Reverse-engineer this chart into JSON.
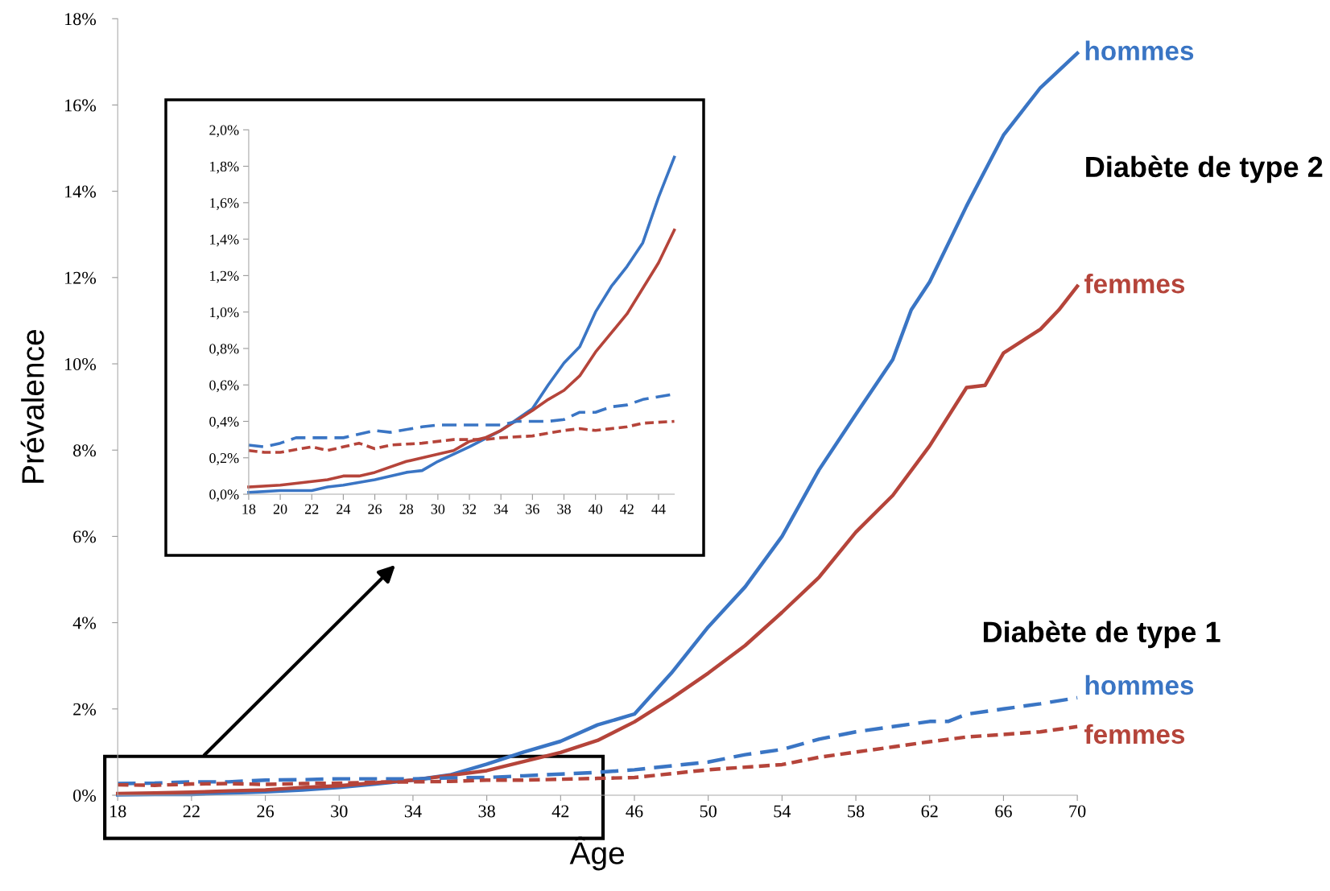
{
  "chart_data": [
    {
      "type": "line",
      "xlabel": "Âge",
      "ylabel": "Prévalence",
      "xlim": [
        18,
        70
      ],
      "ylim": [
        0,
        18
      ],
      "xticks": [
        18,
        22,
        26,
        30,
        34,
        38,
        42,
        46,
        50,
        54,
        58,
        62,
        66,
        70
      ],
      "yticks": [
        {
          "value": 0,
          "label": "0%"
        },
        {
          "value": 2,
          "label": "2%"
        },
        {
          "value": 4,
          "label": "4%"
        },
        {
          "value": 6,
          "label": "6%"
        },
        {
          "value": 8,
          "label": "8%"
        },
        {
          "value": 10,
          "label": "10%"
        },
        {
          "value": 12,
          "label": "12%"
        },
        {
          "value": 14,
          "label": "14%"
        },
        {
          "value": 16,
          "label": "16%"
        },
        {
          "value": 18,
          "label": "18%"
        }
      ],
      "annotations": [
        "Diabète de type 2",
        "Diabète de type 1"
      ],
      "grid": false,
      "legend": false,
      "marker": "none",
      "series": [
        {
          "name": "hommes",
          "color": "#3a75c4",
          "line_style": "solid",
          "x": [
            18,
            20,
            22,
            24,
            26,
            28,
            30,
            32,
            34,
            36,
            38,
            40,
            42,
            44,
            46,
            48,
            50,
            52,
            54,
            56,
            58,
            60,
            61,
            62,
            64,
            66,
            68,
            70
          ],
          "values": [
            0.01,
            0.02,
            0.02,
            0.05,
            0.08,
            0.12,
            0.18,
            0.26,
            0.35,
            0.47,
            0.72,
            1.0,
            1.25,
            1.63,
            1.88,
            2.83,
            3.9,
            4.83,
            6.0,
            7.54,
            8.83,
            10.1,
            11.25,
            11.9,
            13.66,
            15.3,
            16.4,
            17.2
          ]
        },
        {
          "name": "femmes",
          "color": "#b5443a",
          "line_style": "solid",
          "x": [
            18,
            20,
            22,
            24,
            26,
            28,
            30,
            32,
            34,
            36,
            38,
            40,
            42,
            44,
            46,
            48,
            50,
            52,
            54,
            56,
            58,
            60,
            62,
            64,
            65,
            66,
            68,
            69,
            70
          ],
          "values": [
            0.04,
            0.05,
            0.07,
            0.1,
            0.12,
            0.18,
            0.22,
            0.29,
            0.35,
            0.46,
            0.57,
            0.78,
            0.99,
            1.27,
            1.7,
            2.24,
            2.83,
            3.47,
            4.24,
            5.05,
            6.1,
            6.95,
            8.1,
            9.45,
            9.5,
            10.25,
            10.8,
            11.25,
            11.8
          ]
        },
        {
          "name": "hommes",
          "color": "#3a75c4",
          "line_style": "dashed",
          "x": [
            18,
            20,
            22,
            24,
            26,
            28,
            30,
            32,
            34,
            36,
            38,
            40,
            42,
            44,
            46,
            50,
            52,
            54,
            56,
            58,
            60,
            62,
            63,
            64,
            66,
            68,
            70
          ],
          "values": [
            0.27,
            0.28,
            0.31,
            0.31,
            0.35,
            0.36,
            0.38,
            0.38,
            0.38,
            0.4,
            0.41,
            0.45,
            0.49,
            0.53,
            0.59,
            0.77,
            0.94,
            1.06,
            1.3,
            1.47,
            1.59,
            1.71,
            1.71,
            1.88,
            2.0,
            2.12,
            2.26
          ]
        },
        {
          "name": "femmes",
          "color": "#b5443a",
          "line_style": "dotted",
          "x": [
            18,
            20,
            22,
            24,
            26,
            28,
            30,
            32,
            34,
            36,
            38,
            40,
            42,
            44,
            46,
            50,
            54,
            56,
            58,
            60,
            62,
            64,
            66,
            68,
            70
          ],
          "values": [
            0.24,
            0.23,
            0.26,
            0.27,
            0.25,
            0.27,
            0.28,
            0.3,
            0.31,
            0.32,
            0.35,
            0.35,
            0.37,
            0.39,
            0.41,
            0.59,
            0.71,
            0.88,
            1.0,
            1.12,
            1.24,
            1.35,
            1.41,
            1.47,
            1.59
          ]
        }
      ]
    },
    {
      "type": "line",
      "xlim": [
        18,
        45
      ],
      "ylim": [
        0,
        2
      ],
      "xticks": [
        18,
        20,
        22,
        24,
        26,
        28,
        30,
        32,
        34,
        36,
        38,
        40,
        42,
        44
      ],
      "yticks": [
        {
          "value": 0,
          "label": "0,0%"
        },
        {
          "value": 0.2,
          "label": "0,2%"
        },
        {
          "value": 0.4,
          "label": "0,4%"
        },
        {
          "value": 0.6,
          "label": "0,6%"
        },
        {
          "value": 0.8,
          "label": "0,8%"
        },
        {
          "value": 1.0,
          "label": "1,0%"
        },
        {
          "value": 1.2,
          "label": "1,2%"
        },
        {
          "value": 1.4,
          "label": "1,4%"
        },
        {
          "value": 1.6,
          "label": "1,6%"
        },
        {
          "value": 1.8,
          "label": "1,8%"
        },
        {
          "value": 2.0,
          "label": "2,0%"
        }
      ],
      "grid": false,
      "legend": false,
      "marker": "none",
      "series": [
        {
          "color": "#3a75c4",
          "line_style": "solid",
          "x": [
            18,
            20,
            22,
            23,
            24,
            26,
            28,
            29,
            30,
            32,
            34,
            36,
            37,
            38,
            39,
            40,
            41,
            42,
            43,
            44,
            45
          ],
          "values": [
            0.01,
            0.02,
            0.02,
            0.04,
            0.05,
            0.08,
            0.12,
            0.13,
            0.18,
            0.26,
            0.35,
            0.47,
            0.6,
            0.72,
            0.81,
            1.0,
            1.14,
            1.25,
            1.38,
            1.63,
            1.85
          ]
        },
        {
          "color": "#b5443a",
          "line_style": "solid",
          "x": [
            18,
            20,
            22,
            23,
            24,
            25,
            26,
            28,
            30,
            31,
            32,
            33,
            34,
            36,
            37,
            38,
            39,
            40,
            42,
            44,
            45
          ],
          "values": [
            0.04,
            0.05,
            0.07,
            0.08,
            0.1,
            0.1,
            0.12,
            0.18,
            0.22,
            0.24,
            0.29,
            0.31,
            0.35,
            0.46,
            0.52,
            0.57,
            0.65,
            0.78,
            0.99,
            1.27,
            1.45
          ]
        },
        {
          "color": "#3a75c4",
          "line_style": "dashed",
          "x": [
            18,
            19,
            20,
            21,
            24,
            26,
            27,
            29,
            30,
            32,
            34,
            35,
            37,
            38,
            39,
            40,
            41,
            42,
            43,
            45
          ],
          "values": [
            0.27,
            0.26,
            0.28,
            0.31,
            0.31,
            0.35,
            0.34,
            0.37,
            0.38,
            0.38,
            0.38,
            0.4,
            0.4,
            0.41,
            0.45,
            0.45,
            0.48,
            0.49,
            0.52,
            0.55
          ]
        },
        {
          "color": "#b5443a",
          "line_style": "dotted",
          "x": [
            18,
            19,
            20,
            22,
            23,
            25,
            26,
            27,
            29,
            31,
            33,
            34,
            36,
            38,
            39,
            40,
            42,
            43,
            45
          ],
          "values": [
            0.24,
            0.23,
            0.23,
            0.26,
            0.24,
            0.28,
            0.25,
            0.27,
            0.28,
            0.3,
            0.3,
            0.31,
            0.32,
            0.35,
            0.36,
            0.35,
            0.37,
            0.39,
            0.4
          ]
        }
      ]
    }
  ]
}
